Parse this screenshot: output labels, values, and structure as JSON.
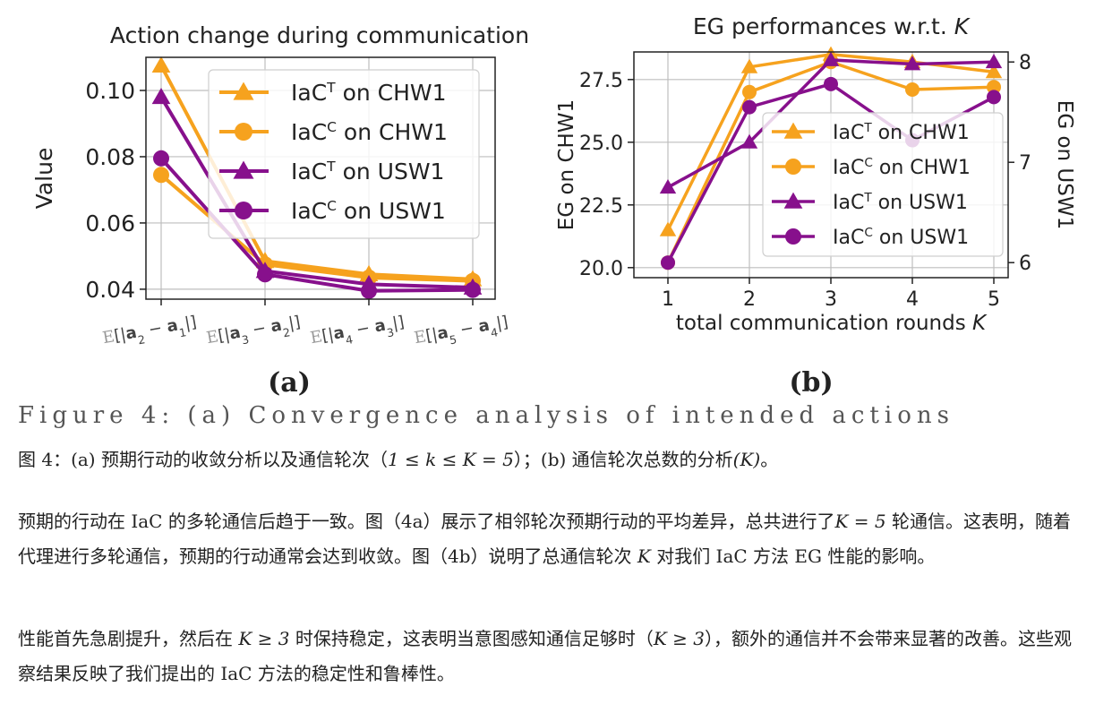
{
  "figure": {
    "panel_labels": [
      "(a)",
      "(b)"
    ],
    "legend_entries": [
      "IaC^T on CHW1",
      "IaC^C on CHW1",
      "IaC^T on USW1",
      "IaC^C on USW1"
    ],
    "colors": {
      "chw1": "#f6a21e",
      "usw1": "#87108c"
    }
  },
  "chart_data": [
    {
      "type": "line",
      "title": "Action change during communication",
      "xlabel": "",
      "ylabel": "Value",
      "categories": [
        "E[|a2 − a1|]",
        "E[|a3 − a2|]",
        "E[|a4 − a3|]",
        "E[|a5 − a4|]"
      ],
      "ylim": [
        0.037,
        0.11
      ],
      "yticks": [
        "0.04",
        "0.06",
        "0.08",
        "0.10"
      ],
      "grid": true,
      "legend_position": "upper-right",
      "series": [
        {
          "name": "IaC^T on CHW1",
          "marker": "triangle",
          "values": [
            0.1075,
            0.0485,
            0.0445,
            0.043
          ]
        },
        {
          "name": "IaC^C on CHW1",
          "marker": "circle",
          "values": [
            0.0745,
            0.0475,
            0.0435,
            0.0425
          ]
        },
        {
          "name": "IaC^T on USW1",
          "marker": "triangle",
          "values": [
            0.098,
            0.0455,
            0.0415,
            0.0405
          ]
        },
        {
          "name": "IaC^C on USW1",
          "marker": "circle",
          "values": [
            0.0795,
            0.0445,
            0.0395,
            0.0398
          ]
        }
      ]
    },
    {
      "type": "line",
      "title": "EG performances w.r.t. K",
      "xlabel": "total communication rounds K",
      "ylabel": "EG on CHW1",
      "ylabel_right": "EG on USW1",
      "x": [
        1,
        2,
        3,
        4,
        5
      ],
      "ylim": [
        19.6,
        28.6
      ],
      "ylim_right": [
        5.85,
        8.1
      ],
      "yticks": [
        "20.0",
        "22.5",
        "25.0",
        "27.5"
      ],
      "yticks_right": [
        "6",
        "7",
        "8"
      ],
      "grid": true,
      "legend_position": "center-right",
      "series": [
        {
          "name": "IaC^T on CHW1",
          "axis": "left",
          "marker": "triangle",
          "values": [
            21.5,
            28.0,
            28.5,
            28.2,
            27.8
          ]
        },
        {
          "name": "IaC^C on CHW1",
          "axis": "left",
          "marker": "circle",
          "values": [
            20.2,
            27.0,
            28.2,
            27.1,
            27.2
          ]
        },
        {
          "name": "IaC^T on USW1",
          "axis": "right",
          "marker": "triangle",
          "values": [
            6.75,
            7.2,
            8.02,
            7.98,
            8.0
          ]
        },
        {
          "name": "IaC^C on USW1",
          "axis": "right",
          "marker": "circle",
          "values": [
            6.0,
            7.55,
            7.78,
            7.22,
            7.65
          ]
        }
      ]
    }
  ],
  "text": {
    "cut_line": "Figure 4: (a) Convergence analysis of intended actions",
    "caption": [
      "图 4：(a) 预期行动的收敛分析以及通信轮次（",
      "1 ≤ k ≤ K = 5",
      "）；(b) 通信轮次总数的分析",
      "(K)",
      "。"
    ],
    "para1": [
      "预期的行动在 IaC 的多轮通信后趋于一致。图（4a）展示了相邻轮次预期行动的平均差异，总共进行了",
      "K = 5",
      " 轮通信。这表明，随着代理进行多轮通信，预期的行动通常会达到收敛。图（4b）说明了总通信轮次 ",
      "K",
      " 对我们 IaC 方法 EG 性能的影响。"
    ],
    "para2": [
      "性能首先急剧提升，然后在 ",
      "K ≥ 3",
      " 时保持稳定，这表明当意图感知通信足够时（",
      "K ≥ 3",
      "），额外的通信并不会带来显著的改善。这些观察结果反映了我们提出的 IaC 方法的稳定性和鲁棒性。"
    ]
  }
}
